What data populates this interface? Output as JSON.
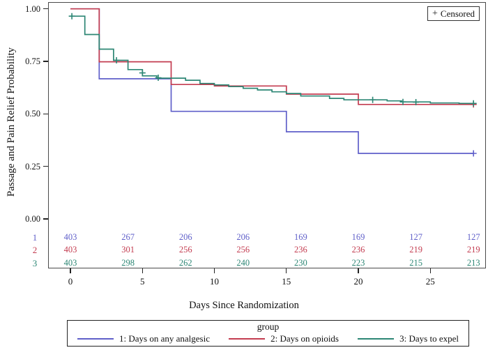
{
  "figure": {
    "censored_box": {
      "marker": "+",
      "label": "Censored"
    }
  },
  "chart_data": {
    "type": "line",
    "subtype": "kaplan-meier-step",
    "title": "",
    "xlabel": "Days Since Randomization",
    "ylabel": "Passage and Pain Relief Probability",
    "xlim": [
      -1.5,
      28.9
    ],
    "ylim": [
      -0.24,
      1.03
    ],
    "grid": false,
    "legend_title": "group",
    "legend_position": "bottom",
    "x_axis": {
      "tick_values": [
        0,
        5,
        10,
        15,
        20,
        25
      ],
      "tick_labels": [
        "0",
        "5",
        "10",
        "15",
        "20",
        "25"
      ]
    },
    "y_axis": {
      "tick_values": [
        1.0,
        0.75,
        0.5,
        0.25,
        0.0
      ],
      "tick_labels": [
        "1.00",
        "0.75",
        "0.50",
        "0.25",
        "0.00"
      ]
    },
    "series": [
      {
        "name": "1: Days on any analgesic",
        "group_label": "1",
        "color": "#5f5fc9",
        "end_day": 28,
        "steps": [
          [
            0,
            1.0
          ],
          [
            2,
            0.667
          ],
          [
            7,
            0.512
          ],
          [
            15,
            0.415
          ],
          [
            20,
            0.312
          ]
        ],
        "censored": [
          [
            28,
            0.312
          ]
        ]
      },
      {
        "name": "2: Days on opioids",
        "group_label": "2",
        "color": "#c33c50",
        "end_day": 28,
        "steps": [
          [
            0,
            1.0
          ],
          [
            2,
            0.748
          ],
          [
            7,
            0.64
          ],
          [
            10,
            0.633
          ],
          [
            15,
            0.594
          ],
          [
            20,
            0.545
          ]
        ],
        "censored": [
          [
            28,
            0.545
          ]
        ]
      },
      {
        "name": "3: Days to expel",
        "group_label": "3",
        "color": "#2c8674",
        "end_day": 28,
        "steps": [
          [
            0,
            0.965
          ],
          [
            1,
            0.878
          ],
          [
            2,
            0.808
          ],
          [
            3,
            0.755
          ],
          [
            4,
            0.711
          ],
          [
            5,
            0.681
          ],
          [
            6,
            0.67
          ],
          [
            8,
            0.66
          ],
          [
            9,
            0.645
          ],
          [
            10,
            0.638
          ],
          [
            11,
            0.63
          ],
          [
            12,
            0.622
          ],
          [
            13,
            0.614
          ],
          [
            14,
            0.605
          ],
          [
            15,
            0.597
          ],
          [
            16,
            0.585
          ],
          [
            18,
            0.574
          ],
          [
            19,
            0.567
          ],
          [
            22,
            0.562
          ],
          [
            23,
            0.557
          ],
          [
            25,
            0.552
          ],
          [
            27,
            0.55
          ]
        ],
        "censored": [
          [
            0.1,
            0.965
          ],
          [
            3.2,
            0.755
          ],
          [
            5.0,
            0.695
          ],
          [
            6.1,
            0.672
          ],
          [
            21,
            0.567
          ],
          [
            23.1,
            0.557
          ],
          [
            24,
            0.556
          ],
          [
            28,
            0.55
          ]
        ]
      }
    ],
    "at_risk": {
      "days": [
        0,
        4,
        8,
        12,
        16,
        20,
        24,
        28
      ],
      "rows": [
        {
          "label": "1",
          "values": [
            "403",
            "267",
            "206",
            "206",
            "169",
            "169",
            "127",
            "127"
          ]
        },
        {
          "label": "2",
          "values": [
            "403",
            "301",
            "256",
            "256",
            "236",
            "236",
            "219",
            "219"
          ]
        },
        {
          "label": "3",
          "values": [
            "403",
            "298",
            "262",
            "240",
            "230",
            "223",
            "215",
            "213"
          ]
        }
      ]
    }
  }
}
